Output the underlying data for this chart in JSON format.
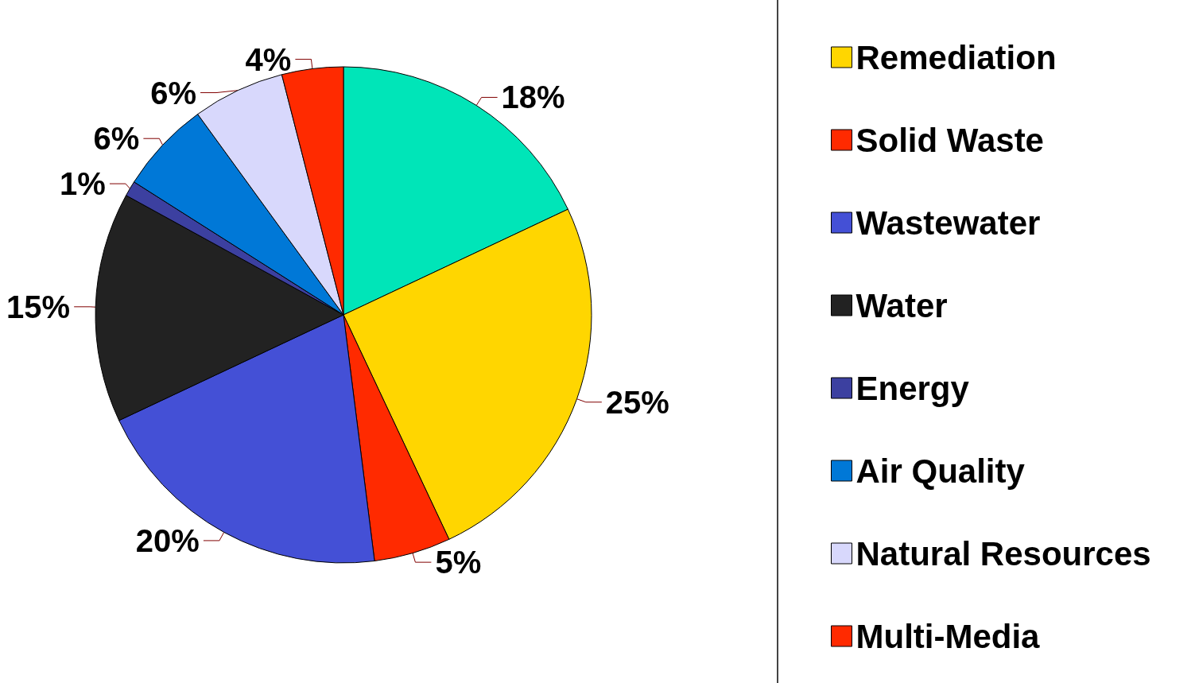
{
  "chart_data": {
    "type": "pie",
    "categories": [
      null,
      "Remediation",
      "Solid Waste",
      "Wastewater",
      "Water",
      "Energy",
      "Air Quality",
      "Natural Resources",
      "Multi-Media"
    ],
    "values": [
      18,
      25,
      5,
      20,
      15,
      1,
      6,
      6,
      4
    ],
    "value_labels": [
      "18%",
      "25%",
      "5%",
      "20%",
      "15%",
      "1%",
      "6%",
      "6%",
      "4%"
    ],
    "colors": [
      "#00e5b8",
      "#ffd600",
      "#ff2a00",
      "#4450d6",
      "#222222",
      "#3c40a0",
      "#0078d7",
      "#d8d8fc",
      "#ff2a00"
    ],
    "legend": "right"
  }
}
